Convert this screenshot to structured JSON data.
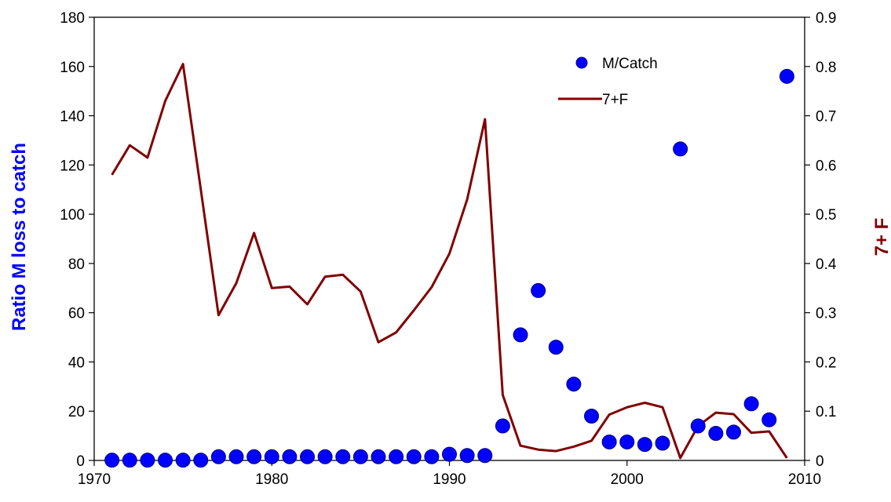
{
  "chart_data": {
    "type": "scatter+line",
    "xlim": [
      1970,
      2010
    ],
    "ylim_left": [
      0,
      180
    ],
    "ylim_right": [
      0,
      0.9
    ],
    "x_ticks": [
      "1970",
      "1980",
      "1990",
      "2000",
      "2010"
    ],
    "y_ticks_left": [
      "0",
      "20",
      "40",
      "60",
      "80",
      "100",
      "120",
      "140",
      "160",
      "180"
    ],
    "y_ticks_right": [
      "0",
      "0.1",
      "0.2",
      "0.3",
      "0.4",
      "0.5",
      "0.6",
      "0.7",
      "0.8",
      "0.9"
    ],
    "ylabel_left": "Ratio M loss to catch",
    "ylabel_right": "7+ F",
    "ylabel_left_color": "#0000ff",
    "ylabel_right_color": "#800000",
    "legend_position": "top-right",
    "grid": false,
    "series": [
      {
        "name": "M/Catch",
        "kind": "scatter",
        "axis": "left",
        "color": "#0000ff",
        "points": [
          [
            1971,
            0.1
          ],
          [
            1972,
            0.1
          ],
          [
            1973,
            0.1
          ],
          [
            1974,
            0.1
          ],
          [
            1975,
            0.1
          ],
          [
            1976,
            0.1
          ],
          [
            1977,
            1.5
          ],
          [
            1978,
            1.5
          ],
          [
            1979,
            1.5
          ],
          [
            1980,
            1.5
          ],
          [
            1981,
            1.5
          ],
          [
            1982,
            1.5
          ],
          [
            1983,
            1.5
          ],
          [
            1984,
            1.5
          ],
          [
            1985,
            1.5
          ],
          [
            1986,
            1.5
          ],
          [
            1987,
            1.5
          ],
          [
            1988,
            1.5
          ],
          [
            1989,
            1.5
          ],
          [
            1990,
            2.5
          ],
          [
            1991,
            2.0
          ],
          [
            1992,
            2.0
          ],
          [
            1993,
            14.0
          ],
          [
            1994,
            51.0
          ],
          [
            1995,
            69.0
          ],
          [
            1996,
            46.0
          ],
          [
            1997,
            31.0
          ],
          [
            1998,
            18.0
          ],
          [
            1999,
            7.5
          ],
          [
            2000,
            7.5
          ],
          [
            2001,
            6.5
          ],
          [
            2002,
            7.0
          ],
          [
            2003,
            126.5
          ],
          [
            2004,
            14.0
          ],
          [
            2005,
            11.0
          ],
          [
            2006,
            11.5
          ],
          [
            2007,
            23.0
          ],
          [
            2008,
            16.5
          ],
          [
            2009,
            156.0
          ]
        ]
      },
      {
        "name": "7+F",
        "kind": "line",
        "axis": "right",
        "color": "#800000",
        "points": [
          [
            1971,
            0.58
          ],
          [
            1972,
            0.64
          ],
          [
            1973,
            0.615
          ],
          [
            1974,
            0.73
          ],
          [
            1975,
            0.805
          ],
          [
            1976,
            0.55
          ],
          [
            1977,
            0.295
          ],
          [
            1978,
            0.36
          ],
          [
            1979,
            0.462
          ],
          [
            1980,
            0.35
          ],
          [
            1981,
            0.353
          ],
          [
            1982,
            0.317
          ],
          [
            1983,
            0.373
          ],
          [
            1984,
            0.377
          ],
          [
            1985,
            0.343
          ],
          [
            1986,
            0.24
          ],
          [
            1987,
            0.26
          ],
          [
            1988,
            0.305
          ],
          [
            1989,
            0.352
          ],
          [
            1990,
            0.42
          ],
          [
            1991,
            0.53
          ],
          [
            1992,
            0.693
          ],
          [
            1993,
            0.133
          ],
          [
            1994,
            0.03
          ],
          [
            1995,
            0.022
          ],
          [
            1996,
            0.019
          ],
          [
            1997,
            0.028
          ],
          [
            1998,
            0.04
          ],
          [
            1999,
            0.093
          ],
          [
            2000,
            0.108
          ],
          [
            2001,
            0.117
          ],
          [
            2002,
            0.108
          ],
          [
            2003,
            0.005
          ],
          [
            2004,
            0.07
          ],
          [
            2005,
            0.097
          ],
          [
            2006,
            0.094
          ],
          [
            2007,
            0.056
          ],
          [
            2008,
            0.059
          ],
          [
            2009,
            0.005
          ]
        ]
      }
    ]
  }
}
